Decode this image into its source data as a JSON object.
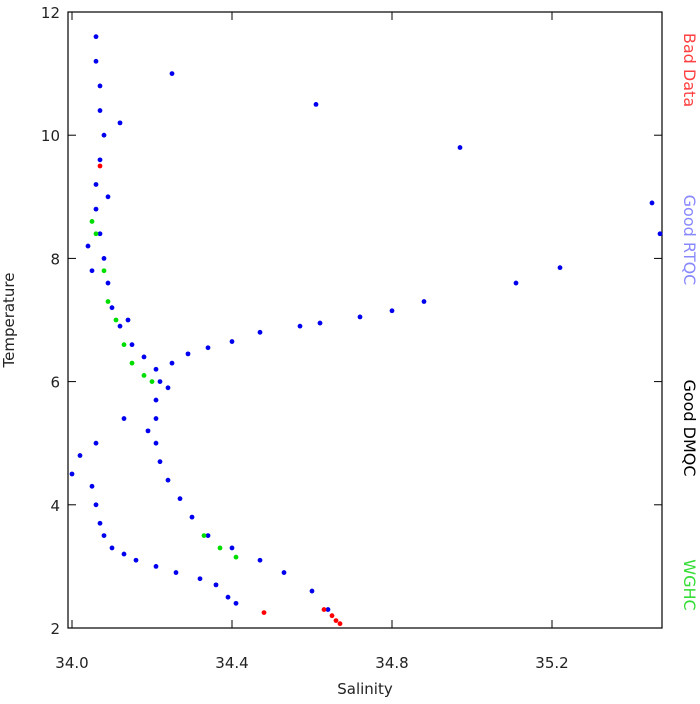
{
  "chart_data": {
    "type": "scatter",
    "x_label": "Salinity",
    "y_label": "Temperature",
    "xlim": [
      33.99,
      35.475
    ],
    "ylim": [
      2,
      12
    ],
    "xticks": [
      {
        "value": 34,
        "label": "34.0"
      },
      {
        "value": 34.4,
        "label": "34.4"
      },
      {
        "value": 34.8,
        "label": "34.8"
      },
      {
        "value": 35.2,
        "label": "35.2"
      }
    ],
    "yticks": [
      2,
      4,
      6,
      8,
      10,
      12
    ],
    "series": [
      {
        "name": "Good RTQC",
        "color": "#0000ee",
        "label_color": "#8888ff",
        "x": [
          34.06,
          34.06,
          34.07,
          34.07,
          34.08,
          34.07,
          34.06,
          34.06,
          34.07,
          34.08,
          34.09,
          34.1,
          34.12,
          34.15,
          34.18,
          34.21,
          34.22,
          34.21,
          34.21,
          34.21,
          34.22,
          34.24,
          34.27,
          34.3,
          34.34,
          34.4,
          34.47,
          34.53,
          34.6,
          34.64,
          34.04,
          34.05,
          34.14,
          34.25,
          34.24,
          34.19,
          34.12,
          34.09,
          34.29,
          34.34,
          34.4,
          34.47,
          34.57,
          34.62,
          34.72,
          34.8,
          34.88,
          35.11,
          35.22,
          35.45,
          35.47,
          34.25,
          34.61,
          34.97,
          34.0,
          34.02,
          34.06,
          34.13,
          34.05,
          34.06,
          34.07,
          34.08,
          34.1,
          34.13,
          34.16,
          34.21,
          34.26,
          34.32,
          34.36,
          34.39,
          34.41
        ],
        "y": [
          11.6,
          11.2,
          10.8,
          10.4,
          10.0,
          9.6,
          9.2,
          8.8,
          8.4,
          8.0,
          7.6,
          7.2,
          6.9,
          6.6,
          6.4,
          6.2,
          6.0,
          5.7,
          5.4,
          5.0,
          4.7,
          4.4,
          4.1,
          3.8,
          3.5,
          3.3,
          3.1,
          2.9,
          2.6,
          2.3,
          8.2,
          7.8,
          7.0,
          6.3,
          5.9,
          5.2,
          10.2,
          9.0,
          6.45,
          6.55,
          6.65,
          6.8,
          6.9,
          6.95,
          7.05,
          7.15,
          7.3,
          7.6,
          7.85,
          8.9,
          8.4,
          11.0,
          10.5,
          9.8,
          4.5,
          4.8,
          5.0,
          5.4,
          4.3,
          4.0,
          3.7,
          3.5,
          3.3,
          3.2,
          3.1,
          3.0,
          2.9,
          2.8,
          2.7,
          2.5,
          2.4
        ]
      },
      {
        "name": "Bad Data",
        "color": "#ff0000",
        "label_color": "#ff4040",
        "x": [
          34.07,
          34.48,
          34.63,
          34.65,
          34.66,
          34.67
        ],
        "y": [
          9.5,
          2.25,
          2.3,
          2.2,
          2.12,
          2.07
        ]
      },
      {
        "name": "Good DMQC",
        "color": "#000000",
        "label_color": "#000000",
        "x": [],
        "y": []
      },
      {
        "name": "WGHC",
        "color": "#00dd00",
        "label_color": "#33dd33",
        "x": [
          34.05,
          34.06,
          34.08,
          34.09,
          34.11,
          34.13,
          34.15,
          34.18,
          34.2,
          34.33,
          34.37,
          34.41
        ],
        "y": [
          8.6,
          8.4,
          7.8,
          7.3,
          7.0,
          6.6,
          6.3,
          6.1,
          6.0,
          3.5,
          3.3,
          3.15
        ]
      }
    ],
    "legend_order": [
      1,
      0,
      2,
      3
    ]
  }
}
